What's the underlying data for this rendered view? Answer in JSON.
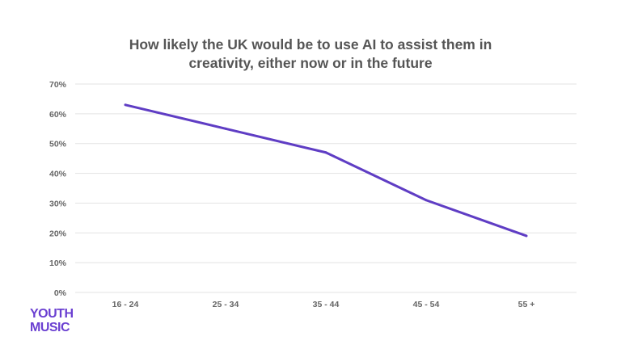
{
  "chart_data": {
    "type": "line",
    "title": "How likely the UK would be to use AI to assist them in creativity, either now or in the future",
    "title_lines": [
      "How likely the UK would be to use AI to assist them in",
      "creativity, either now or in the future"
    ],
    "categories": [
      "16 - 24",
      "25 - 34",
      "35 - 44",
      "45 - 54",
      "55 +"
    ],
    "series": [
      {
        "name": "Likelihood",
        "values": [
          63,
          55,
          47,
          31,
          19
        ],
        "color": "#5f3dc4"
      }
    ],
    "yticks": [
      "0%",
      "10%",
      "20%",
      "30%",
      "40%",
      "50%",
      "60%",
      "70%"
    ],
    "ylim": [
      0,
      70
    ],
    "grid": true,
    "xlabel": "",
    "ylabel": ""
  },
  "logo": {
    "line1": "YOUTH",
    "line2": "MUSIC",
    "color": "#6a3fd1"
  }
}
